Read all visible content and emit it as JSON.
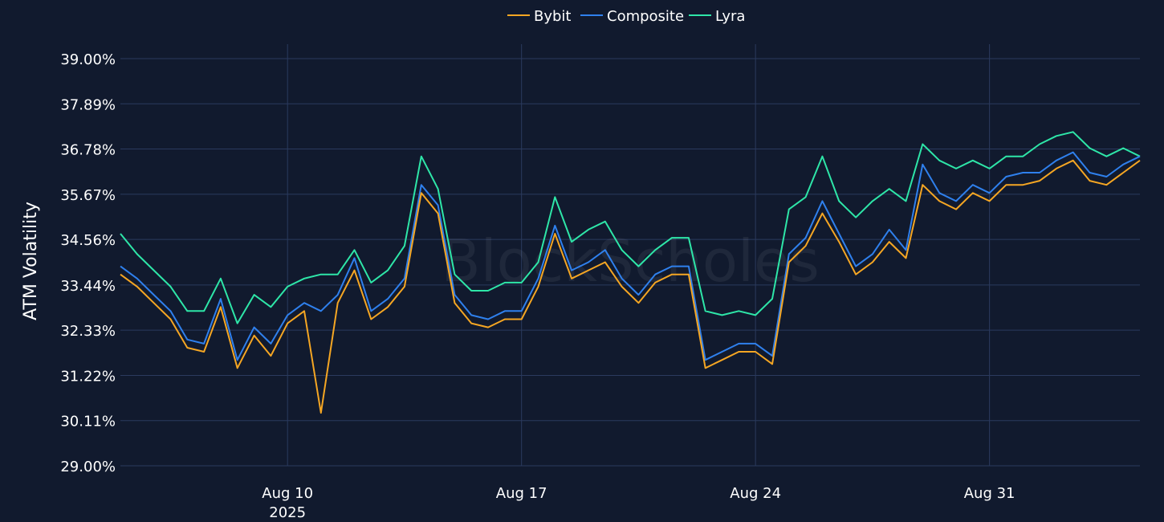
{
  "chart_data": {
    "type": "line",
    "title": "",
    "xlabel": "",
    "ylabel": "ATM Volatility",
    "watermark": "BlockScholes",
    "legend_position": "top-center",
    "grid": true,
    "x_range": [
      "2025-08-05T00:00",
      "2025-09-04T12:00"
    ],
    "ylim": [
      29.0,
      39.0
    ],
    "y_ticks": [
      "29.00%",
      "30.11%",
      "31.22%",
      "32.33%",
      "33.44%",
      "34.56%",
      "35.67%",
      "36.78%",
      "37.89%",
      "39.00%"
    ],
    "y_tick_values": [
      29.0,
      30.11,
      31.22,
      32.33,
      33.44,
      34.56,
      35.67,
      36.78,
      37.89,
      39.0
    ],
    "x_ticks": [
      {
        "date": "2025-08-10",
        "label": "Aug 10",
        "sublabel": "2025"
      },
      {
        "date": "2025-08-17",
        "label": "Aug 17",
        "sublabel": ""
      },
      {
        "date": "2025-08-24",
        "label": "Aug 24",
        "sublabel": ""
      },
      {
        "date": "2025-08-31",
        "label": "Aug 31",
        "sublabel": ""
      }
    ],
    "x": [
      "2025-08-05T00:00",
      "2025-08-05T12:00",
      "2025-08-06T00:00",
      "2025-08-06T12:00",
      "2025-08-07T00:00",
      "2025-08-07T12:00",
      "2025-08-08T00:00",
      "2025-08-08T12:00",
      "2025-08-09T00:00",
      "2025-08-09T12:00",
      "2025-08-10T00:00",
      "2025-08-10T12:00",
      "2025-08-11T00:00",
      "2025-08-11T12:00",
      "2025-08-12T00:00",
      "2025-08-12T12:00",
      "2025-08-13T00:00",
      "2025-08-13T12:00",
      "2025-08-14T00:00",
      "2025-08-14T12:00",
      "2025-08-15T00:00",
      "2025-08-15T12:00",
      "2025-08-16T00:00",
      "2025-08-16T12:00",
      "2025-08-17T00:00",
      "2025-08-17T12:00",
      "2025-08-18T00:00",
      "2025-08-18T12:00",
      "2025-08-19T00:00",
      "2025-08-19T12:00",
      "2025-08-20T00:00",
      "2025-08-20T12:00",
      "2025-08-21T00:00",
      "2025-08-21T12:00",
      "2025-08-22T00:00",
      "2025-08-22T12:00",
      "2025-08-23T00:00",
      "2025-08-23T12:00",
      "2025-08-24T00:00",
      "2025-08-24T12:00",
      "2025-08-25T00:00",
      "2025-08-25T12:00",
      "2025-08-26T00:00",
      "2025-08-26T12:00",
      "2025-08-27T00:00",
      "2025-08-27T12:00",
      "2025-08-28T00:00",
      "2025-08-28T12:00",
      "2025-08-29T00:00",
      "2025-08-29T12:00",
      "2025-08-30T00:00",
      "2025-08-30T12:00",
      "2025-08-31T00:00",
      "2025-08-31T12:00",
      "2025-09-01T00:00",
      "2025-09-01T12:00",
      "2025-09-02T00:00",
      "2025-09-02T12:00",
      "2025-09-03T00:00",
      "2025-09-03T12:00",
      "2025-09-04T00:00",
      "2025-09-04T12:00"
    ],
    "series": [
      {
        "name": "Bybit",
        "color": "#f5a623",
        "values": [
          33.7,
          33.4,
          33.0,
          32.6,
          31.9,
          31.8,
          32.9,
          31.4,
          32.2,
          31.7,
          32.5,
          32.8,
          30.3,
          33.0,
          33.8,
          32.6,
          32.9,
          33.4,
          35.7,
          35.2,
          33.0,
          32.5,
          32.4,
          32.6,
          32.6,
          33.4,
          34.7,
          33.6,
          33.8,
          34.0,
          33.4,
          33.0,
          33.5,
          33.7,
          33.7,
          31.4,
          31.6,
          31.8,
          31.8,
          31.5,
          34.0,
          34.4,
          35.2,
          34.5,
          33.7,
          34.0,
          34.5,
          34.1,
          35.9,
          35.5,
          35.3,
          35.7,
          35.5,
          35.9,
          35.9,
          36.0,
          36.3,
          36.5,
          36.0,
          35.9,
          36.2,
          36.5
        ]
      },
      {
        "name": "Composite",
        "color": "#2f80ed",
        "values": [
          33.9,
          33.6,
          33.2,
          32.8,
          32.1,
          32.0,
          33.1,
          31.6,
          32.4,
          32.0,
          32.7,
          33.0,
          32.8,
          33.2,
          34.1,
          32.8,
          33.1,
          33.6,
          35.9,
          35.4,
          33.2,
          32.7,
          32.6,
          32.8,
          32.8,
          33.6,
          34.9,
          33.8,
          34.0,
          34.3,
          33.6,
          33.2,
          33.7,
          33.9,
          33.9,
          31.6,
          31.8,
          32.0,
          32.0,
          31.7,
          34.2,
          34.6,
          35.5,
          34.7,
          33.9,
          34.2,
          34.8,
          34.3,
          36.4,
          35.7,
          35.5,
          35.9,
          35.7,
          36.1,
          36.2,
          36.2,
          36.5,
          36.7,
          36.2,
          36.1,
          36.4,
          36.6
        ]
      },
      {
        "name": "Lyra",
        "color": "#2ee6a8",
        "values": [
          34.7,
          34.2,
          33.8,
          33.4,
          32.8,
          32.8,
          33.6,
          32.5,
          33.2,
          32.9,
          33.4,
          33.6,
          33.7,
          33.7,
          34.3,
          33.5,
          33.8,
          34.4,
          36.6,
          35.8,
          33.7,
          33.3,
          33.3,
          33.5,
          33.5,
          34.0,
          35.6,
          34.5,
          34.8,
          35.0,
          34.3,
          33.9,
          34.3,
          34.6,
          34.6,
          32.8,
          32.7,
          32.8,
          32.7,
          33.1,
          35.3,
          35.6,
          36.6,
          35.5,
          35.1,
          35.5,
          35.8,
          35.5,
          36.9,
          36.5,
          36.3,
          36.5,
          36.3,
          36.6,
          36.6,
          36.9,
          37.1,
          37.2,
          36.8,
          36.6,
          36.8,
          36.6
        ]
      }
    ]
  }
}
